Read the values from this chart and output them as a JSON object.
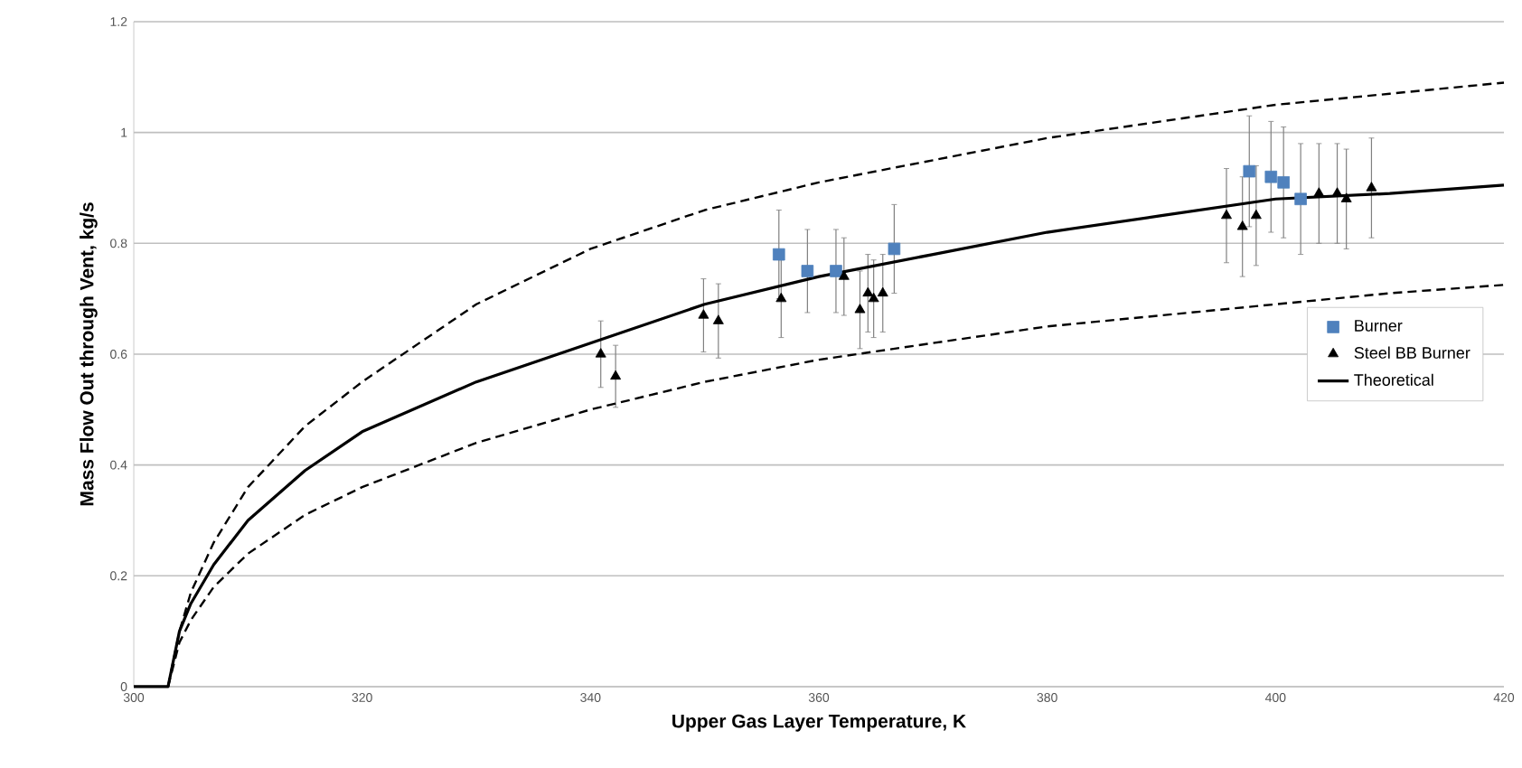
{
  "chart_data": {
    "type": "scatter",
    "xlabel": "Upper Gas Layer Temperature, K",
    "ylabel": "Mass Flow Out through Vent, kg/s",
    "xlim": [
      300,
      420
    ],
    "xticks": [
      300,
      320,
      340,
      360,
      380,
      400,
      420
    ],
    "ylim": [
      0,
      1.2
    ],
    "yticks": [
      0,
      0.2,
      0.4,
      0.6,
      0.8,
      1,
      1.2
    ],
    "grid": "y",
    "legend": "right",
    "series": [
      {
        "name": "Burner",
        "marker": "square",
        "color": "#4f81bd",
        "x": [
          356.5,
          359.0,
          361.5,
          366.6,
          397.7,
          399.6,
          400.7,
          402.2
        ],
        "values": [
          0.78,
          0.75,
          0.75,
          0.79,
          0.93,
          0.92,
          0.91,
          0.88
        ],
        "errors": [
          0.08,
          0.075,
          0.075,
          0.08,
          0.1,
          0.1,
          0.1,
          0.1
        ]
      },
      {
        "name": "Steel BB Burner",
        "marker": "triangle",
        "color": "#000000",
        "x": [
          340.9,
          342.2,
          349.9,
          351.2,
          356.7,
          362.2,
          364.3,
          363.6,
          364.8,
          365.6,
          395.7,
          398.3,
          397.1,
          403.8,
          405.4,
          406.2,
          408.4
        ],
        "values": [
          0.6,
          0.56,
          0.67,
          0.66,
          0.7,
          0.74,
          0.71,
          0.68,
          0.7,
          0.71,
          0.85,
          0.85,
          0.83,
          0.89,
          0.89,
          0.88,
          0.9
        ],
        "errors": [
          0.06,
          0.056,
          0.066,
          0.067,
          0.07,
          0.07,
          0.07,
          0.07,
          0.07,
          0.07,
          0.085,
          0.09,
          0.09,
          0.09,
          0.09,
          0.09,
          0.09
        ]
      },
      {
        "name": "Theoretical",
        "type": "line",
        "marker": "none",
        "line_style": "solid",
        "color": "#000000",
        "x": [
          300,
          303,
          304,
          305,
          307,
          310,
          315,
          320,
          330,
          340,
          350,
          360,
          370,
          380,
          390,
          400,
          410,
          420
        ],
        "values": [
          0,
          0,
          0.1,
          0.15,
          0.22,
          0.3,
          0.39,
          0.46,
          0.55,
          0.62,
          0.69,
          0.74,
          0.78,
          0.82,
          0.85,
          0.88,
          0.89,
          0.905
        ]
      },
      {
        "type": "line",
        "marker": "none",
        "line_style": "dashed",
        "color": "#000000",
        "x": [
          303,
          304,
          305,
          307,
          310,
          315,
          320,
          330,
          340,
          350,
          360,
          370,
          380,
          390,
          400,
          410,
          420
        ],
        "values": [
          0,
          0.1,
          0.17,
          0.26,
          0.36,
          0.47,
          0.55,
          0.69,
          0.79,
          0.86,
          0.91,
          0.95,
          0.99,
          1.02,
          1.05,
          1.07,
          1.09
        ]
      },
      {
        "type": "line",
        "marker": "none",
        "line_style": "dashed",
        "color": "#000000",
        "x": [
          303,
          304,
          305,
          307,
          310,
          315,
          320,
          330,
          340,
          350,
          360,
          370,
          380,
          390,
          400,
          410,
          420
        ],
        "values": [
          0,
          0.08,
          0.12,
          0.18,
          0.24,
          0.31,
          0.36,
          0.44,
          0.5,
          0.55,
          0.59,
          0.62,
          0.65,
          0.67,
          0.69,
          0.71,
          0.725
        ]
      }
    ]
  }
}
